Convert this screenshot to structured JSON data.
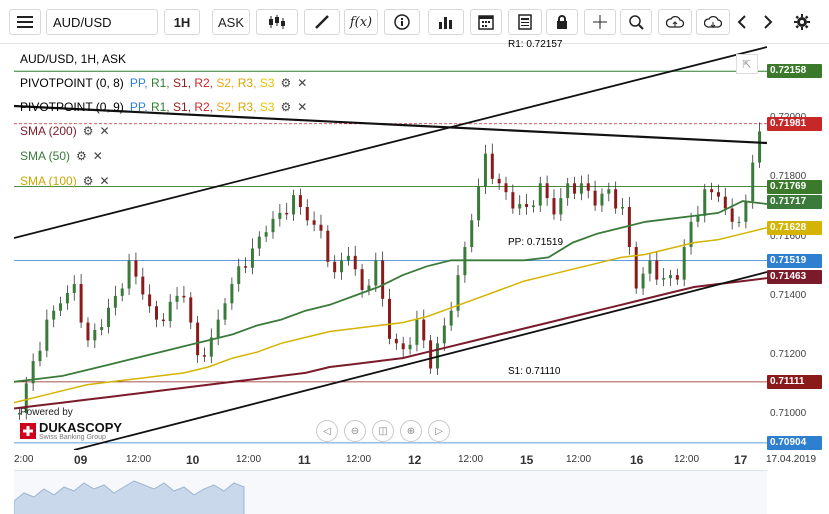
{
  "toolbar": {
    "symbol": "AUD/USD",
    "timeframe": "1H",
    "side": "ASK",
    "fx_label": "f(x)"
  },
  "legend": {
    "title": "AUD/USD, 1H, ASK",
    "pivot1": {
      "name": "PIVOTPOINT (0, 8)",
      "levels": [
        "PP,",
        "R1,",
        "S1,",
        "R2,",
        "S2,",
        "R3,",
        "S3"
      ]
    },
    "pivot2": {
      "name": "PIVOTPOINT (0, 9)",
      "levels": [
        "PP,",
        "R1,",
        "S1,",
        "R2,",
        "S2,",
        "R3,",
        "S3"
      ]
    },
    "sma200": "SMA (200)",
    "sma50": "SMA (50)",
    "sma100": "SMA (100)"
  },
  "colors": {
    "pp": "#2f7fd0",
    "r1": "#2e7d32",
    "s1": "#8b1a1a",
    "r2": "#c62828",
    "s2": "#e6a817",
    "r3": "#e6a817",
    "s3": "#e6c300",
    "sma200": "#7b1a2a",
    "sma50": "#3a7a3a",
    "sma100": "#d4b400",
    "bull": "#3a7a3a",
    "bear": "#8b1a1a",
    "current": "#c62828"
  },
  "levels": {
    "r1_label": "R1: 0.72157",
    "pp_label": "PP: 0.71519",
    "s1_label": "S1: 0.71110"
  },
  "price_axis": {
    "ticks": [
      "0.72000",
      "0.71800",
      "0.71600",
      "0.71400",
      "0.71200",
      "0.71000"
    ],
    "labels": [
      {
        "text": "0.72158",
        "color": "#3a7a2a"
      },
      {
        "text": "0.71981",
        "color": "#c62828"
      },
      {
        "text": "0.71769",
        "color": "#3a7a2a"
      },
      {
        "text": "0.71717",
        "color": "#3a7a3a"
      },
      {
        "text": "0.71628",
        "color": "#d4b400"
      },
      {
        "text": "0.71519",
        "color": "#2f7fd0"
      },
      {
        "text": "0.71463",
        "color": "#7b1a2a"
      },
      {
        "text": "0.71111",
        "color": "#8b1a1a"
      },
      {
        "text": "0.70904",
        "color": "#2f7fd0"
      }
    ]
  },
  "time_axis": {
    "ticks": [
      {
        "text": "2:00",
        "bold": false
      },
      {
        "text": "09",
        "bold": true
      },
      {
        "text": "12:00",
        "bold": false
      },
      {
        "text": "10",
        "bold": true
      },
      {
        "text": "12:00",
        "bold": false
      },
      {
        "text": "11",
        "bold": true
      },
      {
        "text": "12:00",
        "bold": false
      },
      {
        "text": "12",
        "bold": true
      },
      {
        "text": "12:00",
        "bold": false
      },
      {
        "text": "15",
        "bold": true
      },
      {
        "text": "12:00",
        "bold": false
      },
      {
        "text": "16",
        "bold": true
      },
      {
        "text": "12:00",
        "bold": false
      },
      {
        "text": "17",
        "bold": true
      },
      {
        "text": "17.04.2019",
        "bold": false
      }
    ]
  },
  "brand": {
    "powered": "Powered by",
    "name": "DUKASCOPY",
    "sub": "Swiss Banking Group"
  },
  "chart_data": {
    "type": "candlestick",
    "title": "AUD/USD, 1H, ASK",
    "ylim": [
      0.7088,
      0.7225
    ],
    "sma50": [
      0.7111,
      0.7112,
      0.7113,
      0.7115,
      0.7117,
      0.7119,
      0.7121,
      0.7123,
      0.7125,
      0.7127,
      0.713,
      0.7132,
      0.7135,
      0.7137,
      0.714,
      0.7143,
      0.7147,
      0.715,
      0.7152,
      0.7152,
      0.7152,
      0.7152,
      0.7153,
      0.7158,
      0.7161,
      0.7163,
      0.7165,
      0.7166,
      0.7167,
      0.7168,
      0.7172,
      0.7171
    ],
    "sma100": [
      0.7104,
      0.7106,
      0.7108,
      0.711,
      0.7111,
      0.7112,
      0.7113,
      0.7114,
      0.7116,
      0.7119,
      0.7121,
      0.7124,
      0.7126,
      0.7128,
      0.7129,
      0.713,
      0.7131,
      0.7133,
      0.7136,
      0.7139,
      0.7142,
      0.7145,
      0.7147,
      0.7149,
      0.7151,
      0.7153,
      0.7154,
      0.7156,
      0.7158,
      0.7159,
      0.7161,
      0.7163
    ],
    "sma200": [
      0.7102,
      0.7103,
      0.7104,
      0.7105,
      0.7106,
      0.7107,
      0.7108,
      0.7109,
      0.711,
      0.7111,
      0.7112,
      0.7113,
      0.7114,
      0.7116,
      0.7117,
      0.7118,
      0.7119,
      0.7121,
      0.7123,
      0.7125,
      0.7127,
      0.7129,
      0.7131,
      0.7133,
      0.7135,
      0.7137,
      0.7139,
      0.7141,
      0.7143,
      0.7144,
      0.7145,
      0.7146
    ],
    "closes": [
      0.7103,
      0.7118,
      0.713,
      0.714,
      0.7142,
      0.7125,
      0.7132,
      0.714,
      0.715,
      0.7143,
      0.713,
      0.7138,
      0.7142,
      0.712,
      0.7124,
      0.714,
      0.7148,
      0.7156,
      0.7164,
      0.7168,
      0.7172,
      0.7168,
      0.716,
      0.7148,
      0.7156,
      0.7142,
      0.715,
      0.7128,
      0.712,
      0.7132,
      0.7118,
      0.713,
      0.7145,
      0.7168,
      0.7186,
      0.7178,
      0.7172,
      0.717,
      0.7176,
      0.717,
      0.7176,
      0.7178,
      0.7173,
      0.7176,
      0.7168,
      0.7145,
      0.715,
      0.7146,
      0.7148,
      0.7165,
      0.7174,
      0.7176,
      0.7163,
      0.7172,
      0.7198
    ]
  }
}
